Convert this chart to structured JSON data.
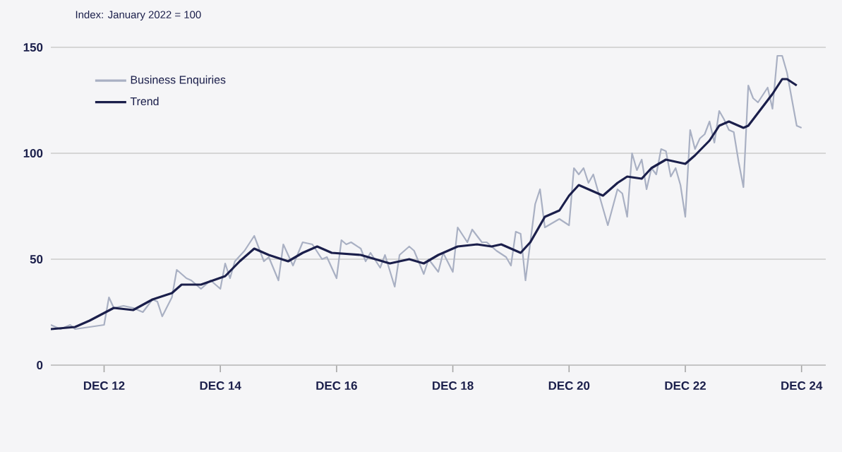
{
  "chart_data": {
    "type": "line",
    "ylabel": "Index: January 2022 = 100",
    "xlim": [
      "2012-01",
      "2025-05"
    ],
    "ylim": [
      0,
      150
    ],
    "yticks": [
      0,
      50,
      100,
      150
    ],
    "xticks": [
      {
        "value": "2012-12",
        "label": "DEC 12"
      },
      {
        "value": "2014-12",
        "label": "DEC 14"
      },
      {
        "value": "2016-12",
        "label": "DEC 16"
      },
      {
        "value": "2018-12",
        "label": "DEC 18"
      },
      {
        "value": "2020-12",
        "label": "DEC 20"
      },
      {
        "value": "2022-12",
        "label": "DEC 22"
      },
      {
        "value": "2024-12",
        "label": "DEC 24"
      }
    ],
    "grid": "y",
    "legend": "top left",
    "marker": "none",
    "line_style": "solid",
    "series": [
      {
        "name": "Business Enquiries",
        "color": "#a9b0c3",
        "x": [
          "2012-01",
          "2012-03",
          "2012-05",
          "2012-06",
          "2012-12",
          "2013-01",
          "2013-02",
          "2013-04",
          "2013-06",
          "2013-08",
          "2013-10",
          "2013-11",
          "2013-12",
          "2014-02",
          "2014-03",
          "2014-05",
          "2014-06",
          "2014-08",
          "2014-10",
          "2014-12",
          "2015-01",
          "2015-02",
          "2015-03",
          "2015-05",
          "2015-07",
          "2015-09",
          "2015-10",
          "2015-12",
          "2016-01",
          "2016-03",
          "2016-05",
          "2016-07",
          "2016-09",
          "2016-10",
          "2016-12",
          "2017-01",
          "2017-02",
          "2017-03",
          "2017-05",
          "2017-06",
          "2017-07",
          "2017-09",
          "2017-10",
          "2017-12",
          "2018-01",
          "2018-03",
          "2018-04",
          "2018-06",
          "2018-07",
          "2018-09",
          "2018-10",
          "2018-12",
          "2019-01",
          "2019-03",
          "2019-04",
          "2019-06",
          "2019-07",
          "2019-09",
          "2019-11",
          "2019-12",
          "2020-01",
          "2020-02",
          "2020-03",
          "2020-05",
          "2020-06",
          "2020-07",
          "2020-10",
          "2020-12",
          "2021-01",
          "2021-02",
          "2021-03",
          "2021-04",
          "2021-05",
          "2021-08",
          "2021-10",
          "2021-11",
          "2021-12",
          "2022-01",
          "2022-02",
          "2022-03",
          "2022-04",
          "2022-05",
          "2022-06",
          "2022-07",
          "2022-08",
          "2022-09",
          "2022-10",
          "2022-11",
          "2022-12",
          "2023-01",
          "2023-02",
          "2023-03",
          "2023-04",
          "2023-05",
          "2023-06",
          "2023-07",
          "2023-08",
          "2023-09",
          "2023-10",
          "2023-11",
          "2023-12",
          "2024-01",
          "2024-02",
          "2024-03",
          "2024-05",
          "2024-06",
          "2024-07",
          "2024-08",
          "2024-09",
          "2024-11",
          "2024-12"
        ],
        "values": [
          19,
          17,
          19,
          17,
          19,
          32,
          27,
          28,
          27,
          25,
          31,
          30,
          23,
          32,
          45,
          41,
          40,
          36,
          40,
          36,
          48,
          41,
          49,
          54,
          61,
          49,
          51,
          40,
          57,
          47,
          58,
          57,
          50,
          51,
          41,
          59,
          57,
          58,
          55,
          49,
          53,
          46,
          52,
          37,
          52,
          56,
          54,
          43,
          50,
          44,
          53,
          44,
          65,
          58,
          64,
          58,
          58,
          54,
          51,
          47,
          63,
          62,
          40,
          76,
          83,
          65,
          69,
          66,
          93,
          90,
          93,
          86,
          90,
          66,
          83,
          81,
          70,
          100,
          92,
          97,
          83,
          93,
          90,
          102,
          101,
          89,
          93,
          85,
          70,
          111,
          102,
          107,
          109,
          115,
          105,
          120,
          116,
          111,
          110,
          96,
          84,
          132,
          126,
          124,
          131,
          121,
          146,
          146,
          138,
          113,
          112
        ]
      },
      {
        "name": "Trend",
        "color": "#1b1f4b",
        "x": [
          "2012-01",
          "2012-06",
          "2012-09",
          "2013-02",
          "2013-06",
          "2013-10",
          "2014-02",
          "2014-04",
          "2014-08",
          "2015-01",
          "2015-04",
          "2015-07",
          "2015-10",
          "2016-02",
          "2016-05",
          "2016-08",
          "2016-11",
          "2017-05",
          "2017-08",
          "2017-11",
          "2018-03",
          "2018-06",
          "2018-09",
          "2019-01",
          "2019-05",
          "2019-08",
          "2019-10",
          "2020-02",
          "2020-04",
          "2020-07",
          "2020-10",
          "2020-12",
          "2021-02",
          "2021-05",
          "2021-07",
          "2021-10",
          "2021-12",
          "2022-03",
          "2022-05",
          "2022-08",
          "2022-10",
          "2022-12",
          "2023-02",
          "2023-05",
          "2023-07",
          "2023-09",
          "2023-12",
          "2024-01",
          "2024-03",
          "2024-06",
          "2024-08",
          "2024-09",
          "2024-11"
        ],
        "values": [
          17,
          18,
          21,
          27,
          26,
          31,
          34,
          38,
          38,
          42,
          49,
          55,
          52,
          49,
          53,
          56,
          53,
          52,
          50,
          48,
          50,
          48,
          52,
          56,
          57,
          56,
          57,
          53,
          58,
          70,
          73,
          80,
          85,
          82,
          80,
          86,
          89,
          88,
          93,
          97,
          96,
          95,
          99,
          106,
          113,
          115,
          112,
          113,
          119,
          128,
          135,
          135,
          132
        ]
      }
    ]
  }
}
